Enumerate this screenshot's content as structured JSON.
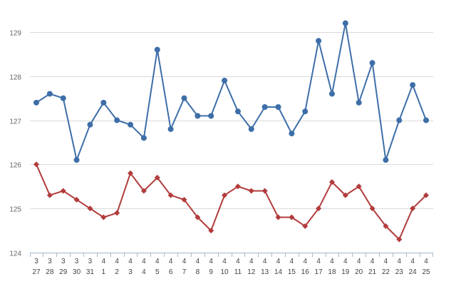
{
  "chart_data": {
    "type": "line",
    "title": "",
    "xlabel": "",
    "ylabel": "",
    "ylim": [
      124,
      129.5
    ],
    "yticks": [
      124,
      125,
      126,
      127,
      128,
      129
    ],
    "grid": true,
    "legend": "none",
    "categories": [
      [
        "3",
        "27"
      ],
      [
        "3",
        "28"
      ],
      [
        "3",
        "29"
      ],
      [
        "3",
        "30"
      ],
      [
        "3",
        "31"
      ],
      [
        "4",
        "1"
      ],
      [
        "4",
        "2"
      ],
      [
        "4",
        "3"
      ],
      [
        "4",
        "4"
      ],
      [
        "4",
        "5"
      ],
      [
        "4",
        "6"
      ],
      [
        "4",
        "7"
      ],
      [
        "4",
        "8"
      ],
      [
        "4",
        "9"
      ],
      [
        "4",
        "10"
      ],
      [
        "4",
        "11"
      ],
      [
        "4",
        "12"
      ],
      [
        "4",
        "13"
      ],
      [
        "4",
        "14"
      ],
      [
        "4",
        "15"
      ],
      [
        "4",
        "16"
      ],
      [
        "4",
        "17"
      ],
      [
        "4",
        "18"
      ],
      [
        "4",
        "19"
      ],
      [
        "4",
        "20"
      ],
      [
        "4",
        "21"
      ],
      [
        "4",
        "22"
      ],
      [
        "4",
        "23"
      ],
      [
        "4",
        "24"
      ],
      [
        "4",
        "25"
      ]
    ],
    "series": [
      {
        "marker": "circle",
        "color": "#3d6ea8",
        "values": [
          127.4,
          127.6,
          127.5,
          126.1,
          126.9,
          127.4,
          127.0,
          126.9,
          126.6,
          128.6,
          126.8,
          127.5,
          127.1,
          127.1,
          127.9,
          127.2,
          126.8,
          127.3,
          127.3,
          126.7,
          127.2,
          128.8,
          127.6,
          129.2,
          127.4,
          128.3,
          126.1,
          127.0,
          127.8,
          127.0
        ]
      },
      {
        "marker": "diamond",
        "color": "#b23c3c",
        "values": [
          126.0,
          125.3,
          125.4,
          125.2,
          125.0,
          124.8,
          124.9,
          125.8,
          125.4,
          125.7,
          125.3,
          125.2,
          124.8,
          124.5,
          125.3,
          125.5,
          125.4,
          125.4,
          124.8,
          124.8,
          124.6,
          125.0,
          125.6,
          125.3,
          125.5,
          125.0,
          124.6,
          124.3,
          125.0,
          125.3
        ]
      }
    ]
  }
}
